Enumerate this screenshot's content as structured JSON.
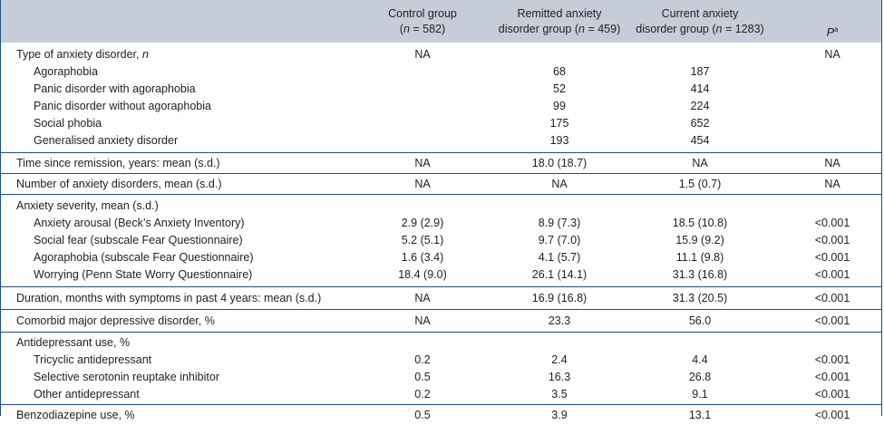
{
  "header": {
    "col1": [
      "Control group",
      "(n = 582)"
    ],
    "col2": [
      "Remitted anxiety",
      "disorder group (n = 459)"
    ],
    "col3": [
      "Current anxiety",
      "disorder group (n = 1283)"
    ],
    "col4": "P",
    "col4_sup": "a"
  },
  "groups": [
    {
      "pad": [
        4,
        3
      ],
      "rows": [
        {
          "label": "Type of anxiety disorder, n",
          "italic_suffix": "n",
          "values": [
            "NA",
            "",
            "",
            "NA"
          ]
        },
        {
          "label": "Agoraphobia",
          "sub": true,
          "values": [
            "",
            "68",
            "187",
            ""
          ]
        },
        {
          "label": "Panic disorder with agoraphobia",
          "sub": true,
          "values": [
            "",
            "52",
            "414",
            ""
          ]
        },
        {
          "label": "Panic disorder without agoraphobia",
          "sub": true,
          "values": [
            "",
            "99",
            "224",
            ""
          ]
        },
        {
          "label": "Social phobia",
          "sub": true,
          "values": [
            "",
            "175",
            "652",
            ""
          ]
        },
        {
          "label": "Generalised anxiety disorder",
          "sub": true,
          "values": [
            "",
            "193",
            "454",
            ""
          ]
        }
      ]
    },
    {
      "pad": [
        2,
        1
      ],
      "rows": [
        {
          "label": "Time since remission, years: mean (s.d.)",
          "values": [
            "NA",
            "18.0 (18.7)",
            "NA",
            "NA"
          ]
        }
      ]
    },
    {
      "pad": [
        2,
        1
      ],
      "rows": [
        {
          "label": "Number of anxiety disorders, mean (s.d.)",
          "values": [
            "NA",
            "NA",
            "1.5 (0.7)",
            "NA"
          ]
        }
      ]
    },
    {
      "pad": [
        3,
        3
      ],
      "rows": [
        {
          "label": "Anxiety severity, mean (s.d.)",
          "values": [
            "",
            "",
            "",
            ""
          ]
        },
        {
          "label": "Anxiety arousal (Beck’s Anxiety Inventory)",
          "sub": true,
          "values": [
            "2.9 (2.9)",
            "8.9 (7.3)",
            "18.5 (10.8)",
            "<0.001"
          ]
        },
        {
          "label": "Social fear (subscale Fear Questionnaire)",
          "sub": true,
          "values": [
            "5.2 (5.1)",
            "9.7 (7.0)",
            "15.9 (9.2)",
            "<0.001"
          ]
        },
        {
          "label": "Agoraphobia (subscale Fear Questionnaire)",
          "sub": true,
          "values": [
            "1.6 (3.4)",
            "4.1 (5.7)",
            "11.1 (9.8)",
            "<0.001"
          ]
        },
        {
          "label": "Worrying (Penn State Worry Questionnaire)",
          "sub": true,
          "values": [
            "18.4 (9.0)",
            "26.1 (14.1)",
            "31.3 (16.8)",
            "<0.001"
          ]
        }
      ]
    },
    {
      "pad": [
        3,
        2
      ],
      "rows": [
        {
          "label": "Duration, months with symptoms in past 4 years: mean (s.d.)",
          "values": [
            "NA",
            "16.9 (16.8)",
            "31.3 (20.5)",
            "<0.001"
          ]
        }
      ]
    },
    {
      "pad": [
        3,
        2
      ],
      "rows": [
        {
          "label": "Comorbid major depressive disorder, %",
          "values": [
            "NA",
            "23.3",
            "56.0",
            "<0.001"
          ]
        }
      ]
    },
    {
      "pad": [
        2,
        1
      ],
      "rows": [
        {
          "label": "Antidepressant use, %",
          "values": [
            "",
            "",
            "",
            ""
          ]
        },
        {
          "label": "Tricyclic antidepressant",
          "sub": true,
          "values": [
            "0.2",
            "2.4",
            "4.4",
            "<0.001"
          ]
        },
        {
          "label": "Selective serotonin reuptake inhibitor",
          "sub": true,
          "values": [
            "0.5",
            "16.3",
            "26.8",
            "<0.001"
          ]
        },
        {
          "label": "Other antidepressant",
          "sub": true,
          "values": [
            "0.2",
            "3.5",
            "9.1",
            "<0.001"
          ]
        }
      ]
    },
    {
      "pad": [
        2,
        1
      ],
      "rows": [
        {
          "label": "Benzodiazepine use, %",
          "values": [
            "0.5",
            "3.9",
            "13.1",
            "<0.001"
          ]
        }
      ]
    }
  ]
}
